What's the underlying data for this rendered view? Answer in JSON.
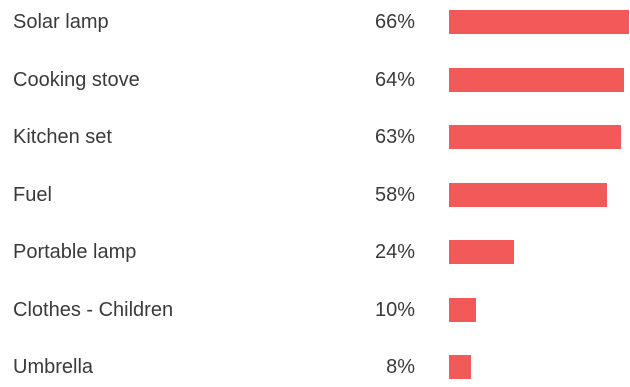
{
  "chart_data": {
    "type": "bar",
    "orientation": "horizontal",
    "categories": [
      "Solar lamp",
      "Cooking stove",
      "Kitchen set",
      "Fuel",
      "Portable lamp",
      "Clothes - Children",
      "Umbrella"
    ],
    "values": [
      66,
      64,
      63,
      58,
      24,
      10,
      8
    ],
    "value_labels": [
      "66%",
      "64%",
      "63%",
      "58%",
      "24%",
      "10%",
      "8%"
    ],
    "unit": "%",
    "xlim": [
      0,
      66
    ],
    "bar_color": "#f25a5a",
    "grid": false,
    "legend": "none"
  }
}
